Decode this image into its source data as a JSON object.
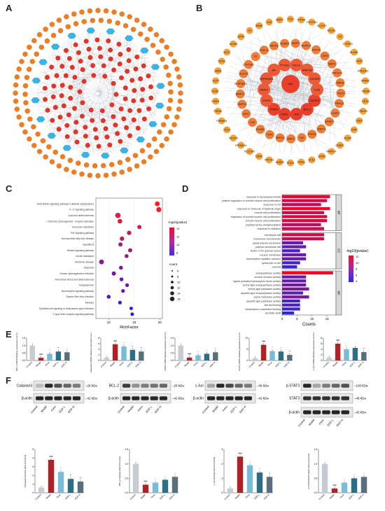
{
  "panels": {
    "A": "A",
    "B": "B",
    "C": "C",
    "D": "D",
    "E": "E",
    "F": "F"
  },
  "colors": {
    "orange": "#ef7d22",
    "blue": "#3ab3e6",
    "red": "#e1332b",
    "grey": "#c5ccd4",
    "darkred": "#b02126",
    "teal": "#2b6f86",
    "lightblue": "#78bcd9"
  },
  "network_B": {
    "center": [
      "TNF",
      "CASP3",
      "BCL2",
      "JUN",
      "ESR1",
      "STAT3",
      "EGFR",
      "MMP9",
      "HSP90AA1",
      "AR",
      "PTGS2",
      "RELA",
      "MAPK8",
      "CASP8",
      "IL1B"
    ],
    "inner": [
      "MMP2",
      "MAPK14",
      "HNF4A",
      "CDK4",
      "MMP3",
      "PRKACA",
      "IKBKB",
      "NOX4",
      "PRKCA",
      "CASP7",
      "IGFBP3",
      "DNMT1",
      "PSEN1",
      "CA2",
      "MMP1",
      "HMOX1",
      "TERT",
      "ELANE",
      "CA9",
      "MPO",
      "MMP12",
      "MMP13",
      "SERPINE1",
      "ALOX5",
      "CYP19A1",
      "F2",
      "PRKCD",
      "ABCB1",
      "ADRB2"
    ],
    "outer": [
      "FTO",
      "HTR2A",
      "CYP27B1",
      "ALOX12",
      "NR1H3",
      "F3",
      "CYP2C9",
      "ELANE",
      "AHR",
      "HSD11B1",
      "ADRB2",
      "HMGB1",
      "CES1",
      "PRKCB",
      "TERT",
      "KDR",
      "PLIN5",
      "DNMT1",
      "MAPK14",
      "LIF4A1",
      "ECE1",
      "PTPN1",
      "PLIN1",
      "ADRB3",
      "ATP1A1",
      "ERN1",
      "SLC13A5",
      "RPS6KA3",
      "NCSTN",
      "CES2",
      "PSENEN",
      "PSEN2",
      "FFAR1",
      "CD38",
      "ALPI",
      "SHBG",
      "HCN1",
      "ACLY",
      "ALDH2",
      "DPP4",
      "TH",
      "IKBKE",
      "CA3",
      "MMP7"
    ]
  },
  "chart_C": {
    "type": "scatter",
    "xlabel": "RichFactor",
    "xticks": [
      "10",
      "15",
      "20"
    ],
    "terms": [
      {
        "name": "AGE-RAGE signaling pathway in diabetic complications",
        "x": 19.5,
        "p": 14,
        "count": 14
      },
      {
        "name": "IL-17 signaling pathway",
        "x": 19.8,
        "p": 13.5,
        "count": 15
      },
      {
        "name": "Lipid and atherosclerosis",
        "x": 11.8,
        "p": 13,
        "count": 16
      },
      {
        "name": "Chemical carcinogenesis - receptor activation",
        "x": 12.2,
        "p": 12.8,
        "count": 13
      },
      {
        "name": "Endocrine resistance",
        "x": 16.0,
        "p": 12.5,
        "count": 11
      },
      {
        "name": "TNF signaling pathway",
        "x": 14.0,
        "p": 11.8,
        "count": 12
      },
      {
        "name": "Non-alcoholic fatty liver disease",
        "x": 12.6,
        "p": 11.5,
        "count": 12
      },
      {
        "name": "Hepatitis B",
        "x": 12.3,
        "p": 11,
        "count": 11
      },
      {
        "name": "Relaxin signaling pathway",
        "x": 14.2,
        "p": 10.8,
        "count": 11
      },
      {
        "name": "Insulin resistance",
        "x": 13.5,
        "p": 10.5,
        "count": 10
      },
      {
        "name": "Alzheimer disease",
        "x": 8.6,
        "p": 9.8,
        "count": 14
      },
      {
        "name": "Apoptosis",
        "x": 12.4,
        "p": 9.5,
        "count": 10
      },
      {
        "name": "Human cytomegalovirus infection",
        "x": 11.0,
        "p": 9.0,
        "count": 11
      },
      {
        "name": "Fluid shear stress and atherosclerosis",
        "x": 12.5,
        "p": 8.8,
        "count": 10
      },
      {
        "name": "Toxoplasmosis",
        "x": 13.6,
        "p": 8.5,
        "count": 9
      },
      {
        "name": "Neurotrophin signaling pathway",
        "x": 12.8,
        "p": 8.2,
        "count": 9
      },
      {
        "name": "Epstein-Barr virus infection",
        "x": 10.0,
        "p": 7.8,
        "count": 10
      },
      {
        "name": "Measles",
        "x": 12.2,
        "p": 7.4,
        "count": 9
      },
      {
        "name": "Epithelial cell signaling in Helicobacter pylori infection",
        "x": 14.4,
        "p": 7.0,
        "count": 8
      },
      {
        "name": "C-type lectin receptor signaling pathway",
        "x": 14.6,
        "p": 6.8,
        "count": 8
      }
    ],
    "legend_p_title": "-log10(pvalue)",
    "legend_p_ticks": [
      "14",
      "12",
      "10",
      "8"
    ],
    "legend_count_title": "count",
    "legend_count_ticks": [
      "6",
      "8",
      "10",
      "12",
      "14",
      "16"
    ]
  },
  "chart_D": {
    "type": "bar",
    "xlabel": "Counts",
    "xticks": [
      "0",
      "5",
      "10",
      "15"
    ],
    "groups": [
      {
        "name": "BP",
        "terms": [
          {
            "name": "response to lipopolysaccharide",
            "v": 16
          },
          {
            "name": "positive regulation of smooth muscle cell proliferation",
            "v": 15
          },
          {
            "name": "response to UV",
            "v": 13
          },
          {
            "name": "response to molecule of bacterial origin",
            "v": 16
          },
          {
            "name": "muscle cell proliferation",
            "v": 14
          },
          {
            "name": "regulation of smooth muscle cell proliferation",
            "v": 15
          },
          {
            "name": "smooth muscle cell proliferation",
            "v": 15
          },
          {
            "name": "peptidyl-serine phosphorylation",
            "v": 13
          },
          {
            "name": "response to radiation",
            "v": 14
          }
        ]
      },
      {
        "name": "CC",
        "terms": [
          {
            "name": "membrane raft",
            "v": 14
          },
          {
            "name": "membrane microdomain",
            "v": 14
          },
          {
            "name": "apical plasma membrane",
            "v": 7
          },
          {
            "name": "plasma membrane raft",
            "v": 8
          },
          {
            "name": "ficolin-1-rich granule lumen",
            "v": 6
          },
          {
            "name": "nuclear membrane",
            "v": 8
          },
          {
            "name": "transcription regulator complex",
            "v": 8
          },
          {
            "name": "apical part of cell",
            "v": 6
          },
          {
            "name": "caveola",
            "v": 5
          }
        ]
      },
      {
        "name": "MF",
        "terms": [
          {
            "name": "endopeptidase activity",
            "v": 17
          },
          {
            "name": "nuclear receptor activity",
            "v": 8
          },
          {
            "name": "ligand-activated transcription factor activity",
            "v": 8
          },
          {
            "name": "serine-type endopeptidase activity",
            "v": 8
          },
          {
            "name": "serine-type peptidase activity",
            "v": 9
          },
          {
            "name": "aspartic-type endopeptidase activity",
            "v": 7
          },
          {
            "name": "serine hydrolase activity",
            "v": 9
          },
          {
            "name": "aspartic-type peptidase activity",
            "v": 6
          },
          {
            "name": "steroid binding",
            "v": 6
          },
          {
            "name": "transcription coactivator binding",
            "v": 6
          },
          {
            "name": "dendritic shaft",
            "v": 4
          }
        ]
      }
    ],
    "legend_title": "-log10(pvalue)",
    "legend_ticks": [
      "12",
      "10",
      "8",
      "6",
      "4"
    ]
  },
  "chart_E": {
    "categories": [
      "Control",
      "Model",
      "Fenn",
      "EGF-L",
      "EGF-H"
    ],
    "panels": [
      {
        "ylabel": "BCL-2 mRNA Relative expression (vs Control)",
        "values": [
          1.0,
          0.18,
          0.45,
          0.6,
          0.55
        ],
        "yticks": [
          "0.0",
          "0.5",
          "1.0",
          "1.5"
        ],
        "ymax": 1.5,
        "sig": [
          "",
          "###",
          "*",
          "**",
          "*"
        ]
      },
      {
        "ylabel": "Caspase3 mRNA Relative expression (vs Control)",
        "values": [
          1.0,
          5.8,
          5.0,
          3.8,
          3.2
        ],
        "yticks": [
          "0",
          "2",
          "4",
          "6",
          "8"
        ],
        "ymax": 8,
        "sig": [
          "",
          "###",
          "*",
          "**",
          "**"
        ]
      },
      {
        "ylabel": "ESR1 mRNA Relative expression (vs Control)",
        "values": [
          1.0,
          0.2,
          0.35,
          0.45,
          0.55
        ],
        "yticks": [
          "0.0",
          "0.5",
          "1.0",
          "1.5"
        ],
        "ymax": 1.5,
        "sig": [
          "",
          "###",
          "*",
          "*",
          "*"
        ]
      },
      {
        "ylabel": "STAT3 mRNA Relative expression (vs Control)",
        "values": [
          1.0,
          7.0,
          4.2,
          4.0,
          2.5
        ],
        "yticks": [
          "0",
          "5",
          "10"
        ],
        "ymax": 10,
        "sig": [
          "",
          "###",
          "*",
          "*",
          "**"
        ]
      },
      {
        "ylabel": "c-Jun mRNA Relative expression (vs Control)",
        "values": [
          1.0,
          6.0,
          4.0,
          4.5,
          3.0
        ],
        "yticks": [
          "0",
          "2",
          "4",
          "6",
          "8"
        ],
        "ymax": 8,
        "sig": [
          "",
          "###",
          "*",
          "",
          "**"
        ]
      }
    ]
  },
  "blots": [
    {
      "target": "Caspase3",
      "kda": "26 kDa",
      "actin": "β-actin",
      "actin_kda": "42 kDa"
    },
    {
      "target": "BCL-2",
      "kda": "26 kDa",
      "actin": "β-actin",
      "actin_kda": "42 kDa"
    },
    {
      "target": "c-Jun",
      "kda": "48 kDa",
      "actin": "β-actin",
      "actin_kda": "42 kDa"
    },
    {
      "target": "p-STAT3",
      "kda": "100 kDa",
      "target2": "STAT3",
      "kda2": "48 kDa",
      "actin": "β-actin",
      "actin_kda": "42 kDa"
    }
  ],
  "lane_labels": [
    "Control",
    "Model",
    "Fenn",
    "EGF-L",
    "EGF-H"
  ],
  "chart_F": {
    "panels": [
      {
        "ylabel": "Caspase3 intensity (fold of Control)",
        "values": [
          0.6,
          3.8,
          2.4,
          1.6,
          1.3
        ],
        "ymax": 5,
        "yticks": [
          "0",
          "1",
          "2",
          "3",
          "4",
          "5"
        ],
        "sig": [
          "",
          "###",
          "*",
          "**",
          "**"
        ]
      },
      {
        "ylabel": "BCL-2 intensity (fold of Control)",
        "values": [
          1.0,
          0.28,
          0.35,
          0.45,
          0.55
        ],
        "ymax": 1.5,
        "yticks": [
          "0.0",
          "0.5",
          "1.0",
          "1.5"
        ],
        "sig": [
          "",
          "###",
          "*",
          "*",
          "*"
        ]
      },
      {
        "ylabel": "c-Jun intensity (fold of Control)",
        "values": [
          0.3,
          2.5,
          1.9,
          1.4,
          1.1
        ],
        "ymax": 3,
        "yticks": [
          "0",
          "1",
          "2",
          "3"
        ],
        "sig": [
          "",
          "###",
          "*",
          "*",
          "**"
        ]
      },
      {
        "ylabel": "p-STAT3/STAT3 Ratio (fold of Control)",
        "values": [
          1.0,
          0.15,
          0.35,
          0.5,
          0.55
        ],
        "ymax": 1.5,
        "yticks": [
          "0.0",
          "0.5",
          "1.0",
          "1.5"
        ],
        "sig": [
          "",
          "###",
          "*",
          "*",
          "*"
        ]
      }
    ]
  }
}
